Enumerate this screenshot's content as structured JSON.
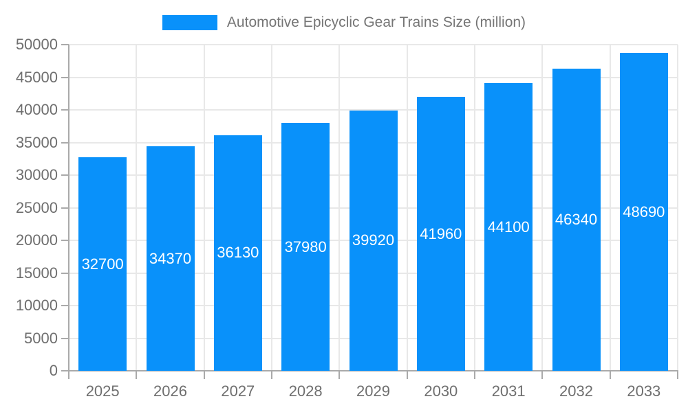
{
  "chart_data": {
    "type": "bar",
    "title": "Automotive Epicyclic Gear Trains Size (million)",
    "categories": [
      "2025",
      "2026",
      "2027",
      "2028",
      "2029",
      "2030",
      "2031",
      "2032",
      "2033"
    ],
    "values": [
      32700,
      34370,
      36130,
      37980,
      39920,
      41960,
      44100,
      46340,
      48690
    ],
    "value_labels": [
      "32700",
      "34370",
      "36130",
      "37980",
      "39920",
      "41960",
      "44100",
      "46340",
      "48690"
    ],
    "xlabel": "",
    "ylabel": "",
    "ylim": [
      0,
      50000
    ],
    "ytick_step": 5000,
    "ytick_labels": [
      "0",
      "5000",
      "10000",
      "15000",
      "20000",
      "25000",
      "30000",
      "35000",
      "40000",
      "45000",
      "50000"
    ],
    "grid": true,
    "legend_position": "top",
    "colors": {
      "bar": "#0991fa",
      "value_label": "#ffffff",
      "title_text": "#757575",
      "axis_text": "#6e6e6e",
      "grid_line": "#e8e8e8",
      "axis_line": "#aaaaaa",
      "background": "#ffffff"
    }
  }
}
